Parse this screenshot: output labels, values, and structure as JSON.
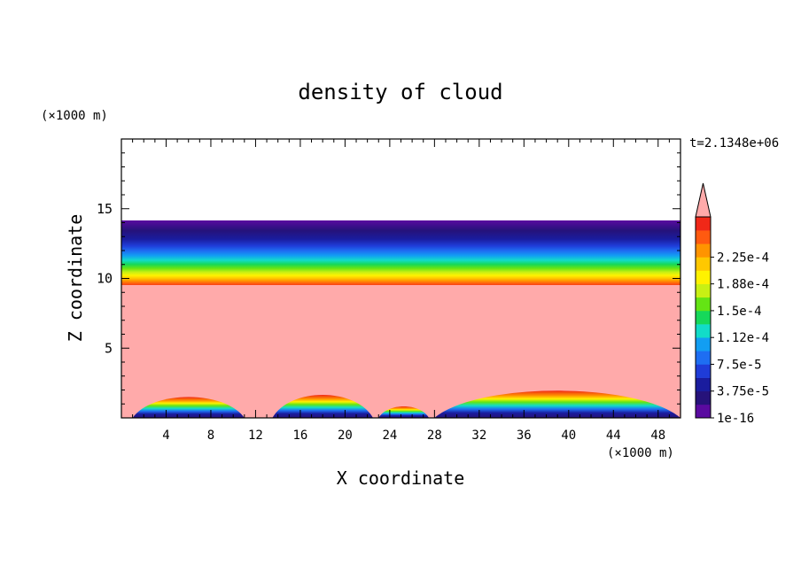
{
  "chart_data": {
    "type": "heatmap",
    "title": "density of cloud",
    "xlabel": "X coordinate",
    "ylabel": "Z coordinate",
    "x_unit": "(×1000 m)",
    "y_unit": "(×1000 m)",
    "time_label": "t=2.1348e+06",
    "xlim": [
      0,
      50
    ],
    "ylim": [
      0,
      20
    ],
    "x_ticks": [
      "4",
      "8",
      "12",
      "16",
      "20",
      "24",
      "28",
      "32",
      "36",
      "40",
      "44",
      "48"
    ],
    "y_ticks": [
      "5",
      "10",
      "15"
    ],
    "colorbar": {
      "labels": [
        "1e-16",
        "3.75e-5",
        "7.5e-5",
        "1.12e-4",
        "1.5e-4",
        "1.88e-4",
        "2.25e-4"
      ],
      "colors": [
        "#5a0aa0",
        "#26127a",
        "#1a1c9e",
        "#1f3cd8",
        "#1e6ef2",
        "#129ef2",
        "#12dcc8",
        "#16d85a",
        "#64e414",
        "#c8f014",
        "#fff200",
        "#ffc800",
        "#ff9400",
        "#ff5a10",
        "#f02818",
        "#ffaaaa"
      ],
      "extend": "max"
    },
    "regions": [
      {
        "name": "clear air",
        "z_range": [
          14.1,
          20
        ],
        "color": "#ffffff"
      },
      {
        "name": "upper layer gradient",
        "z_range": [
          9.6,
          14.1
        ],
        "color_from": "#5a0aa0",
        "color_to": "#f02818"
      },
      {
        "name": "saturated layer",
        "z_range": [
          0,
          9.6
        ],
        "color": "#ffaaaa"
      }
    ],
    "surface_bumps": [
      {
        "x_range": [
          1,
          11
        ],
        "peak_z": 2.0
      },
      {
        "x_range": [
          13.5,
          22.5
        ],
        "peak_z": 2.2
      },
      {
        "x_range": [
          23,
          27.5
        ],
        "peak_z": 1.1
      },
      {
        "x_range": [
          28,
          50
        ],
        "peak_z": 2.6
      }
    ]
  }
}
